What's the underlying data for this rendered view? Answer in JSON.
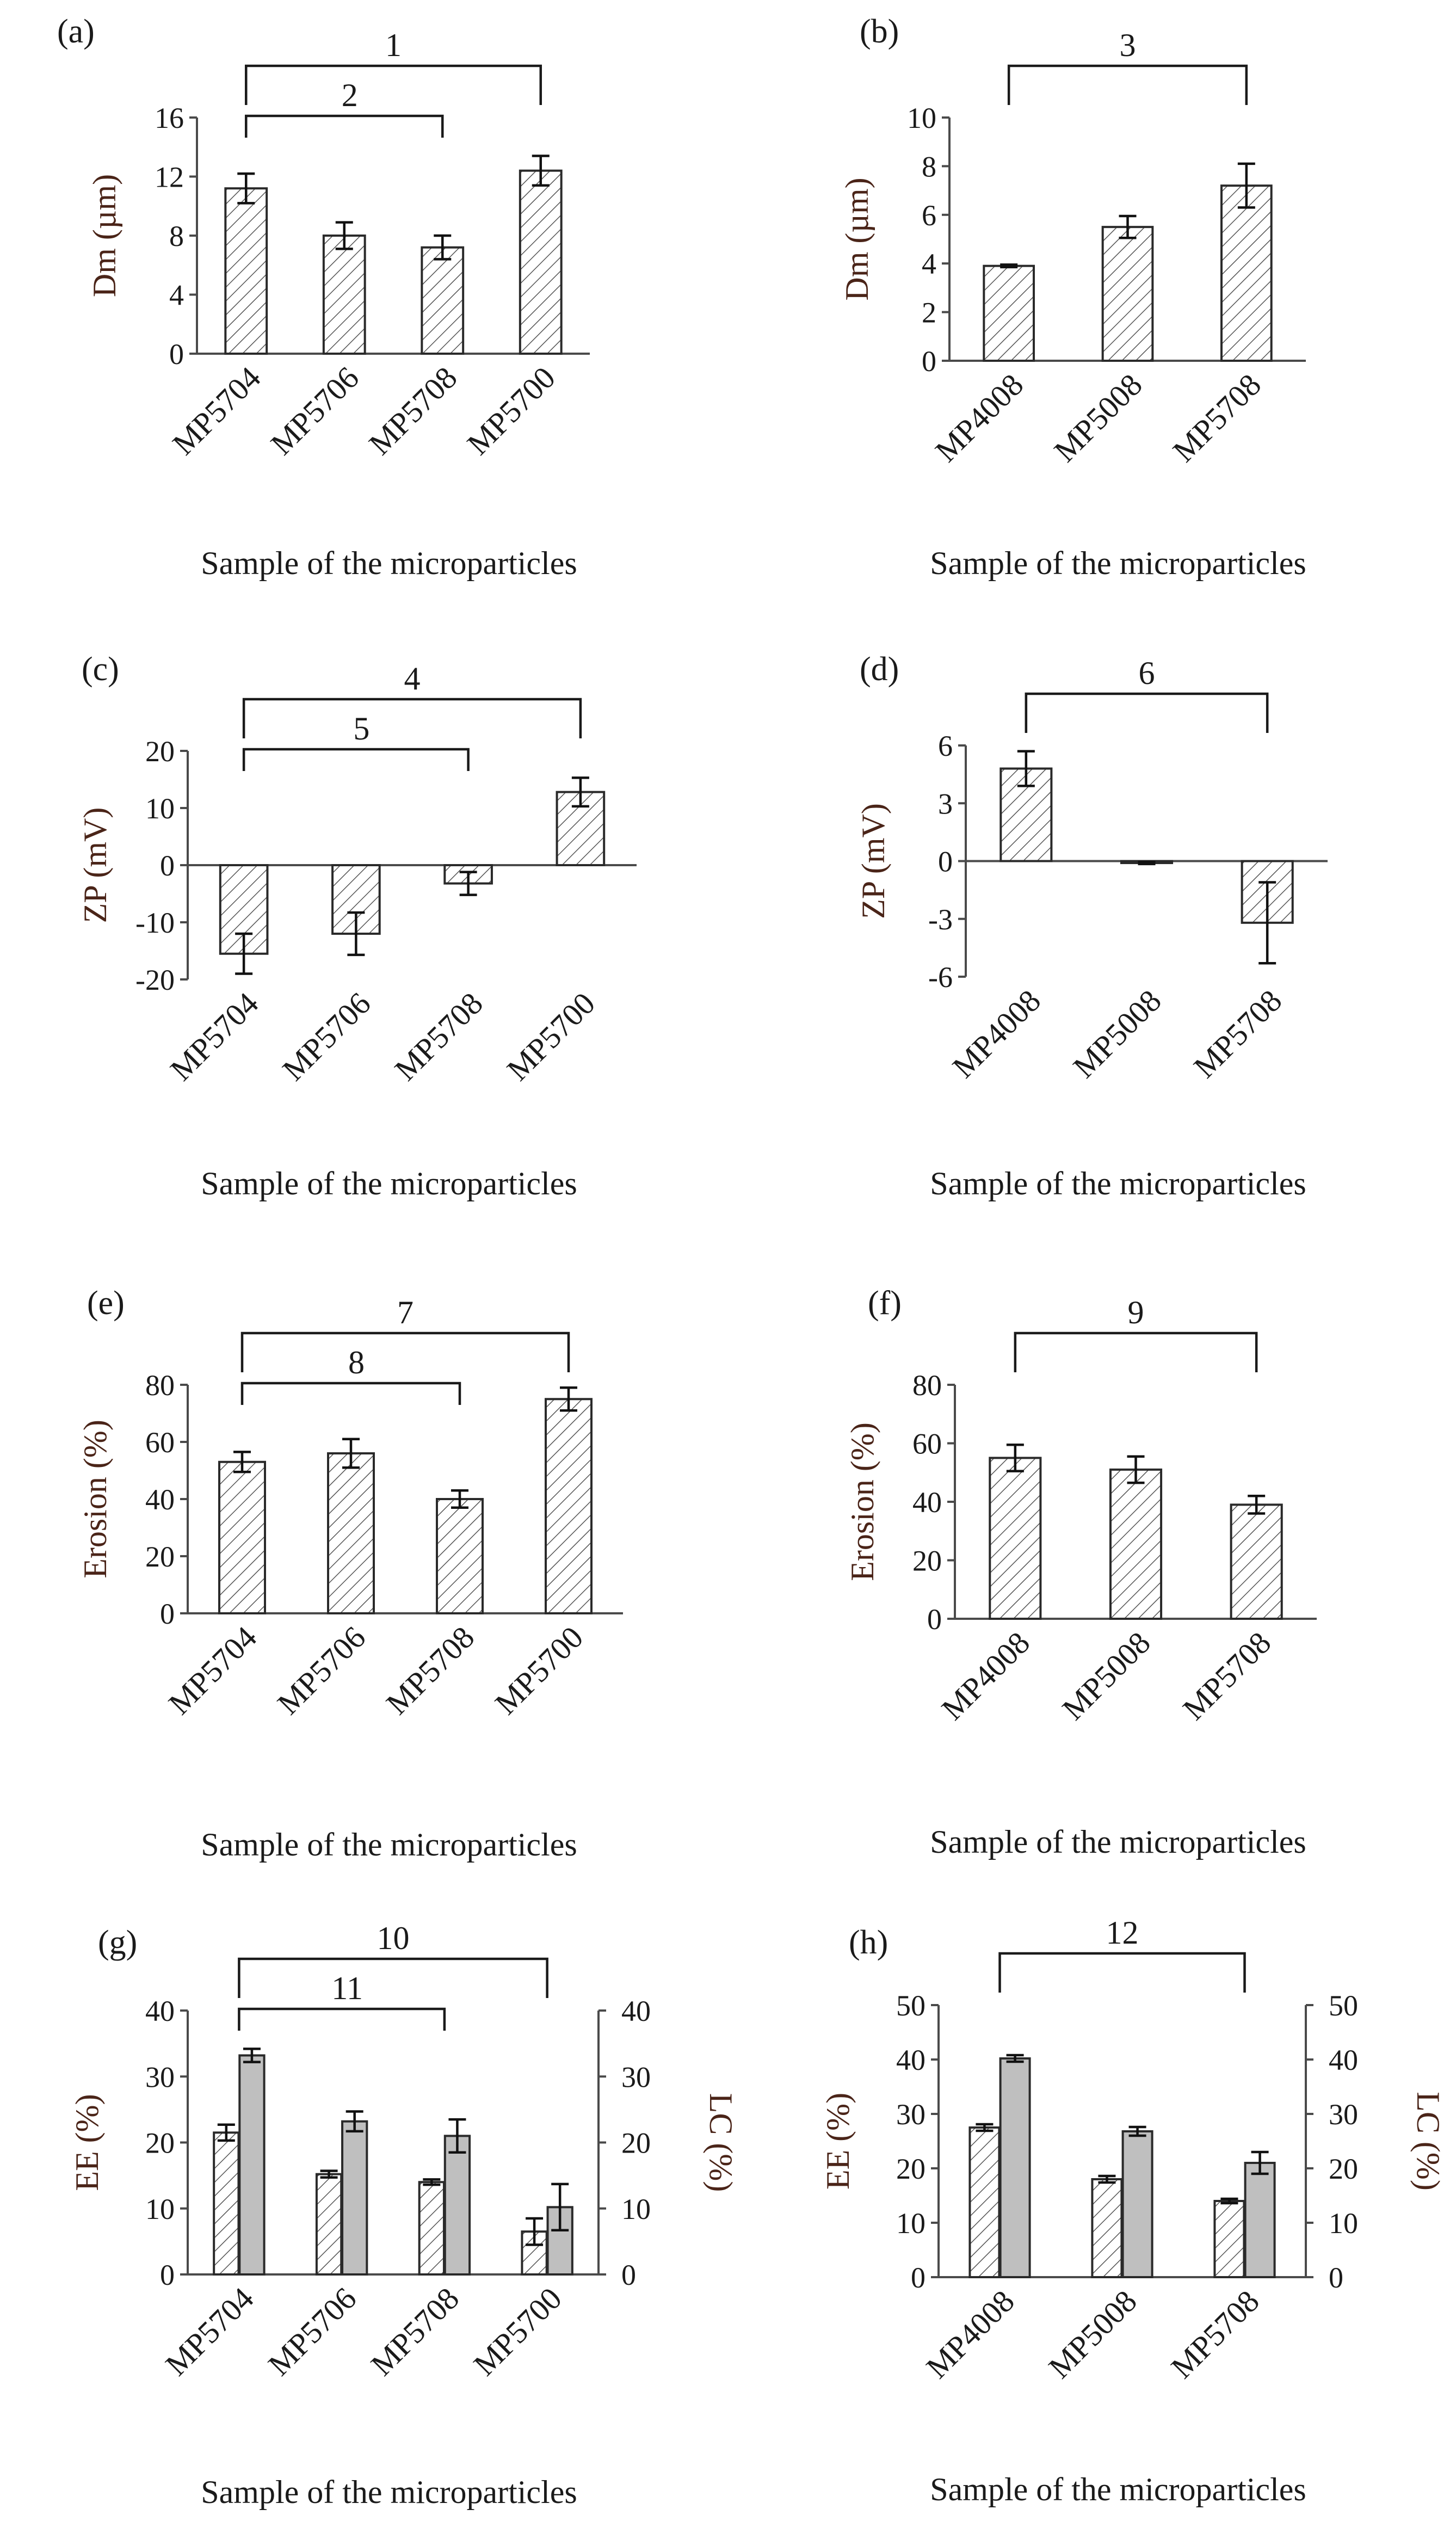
{
  "chart_data": [
    {
      "id": "a",
      "label": "(a)",
      "type": "bar",
      "categories": [
        "MP5704",
        "MP5706",
        "MP5708",
        "MP5700"
      ],
      "values": [
        11.2,
        8.0,
        7.2,
        12.4
      ],
      "errors": [
        1.0,
        0.9,
        0.8,
        1.0
      ],
      "ylabel": "Dm (µm)",
      "xlabel": "Sample of the microparticles",
      "ylim": [
        0,
        16
      ],
      "yticks": [
        0,
        4,
        8,
        12,
        16
      ],
      "brackets": [
        {
          "label": "1",
          "from": 0,
          "to": 3,
          "level": 0
        },
        {
          "label": "2",
          "from": 0,
          "to": 2,
          "level": 1
        }
      ]
    },
    {
      "id": "b",
      "label": "(b)",
      "type": "bar",
      "categories": [
        "MP4008",
        "MP5008",
        "MP5708"
      ],
      "values": [
        3.9,
        5.5,
        7.2
      ],
      "errors": [
        0.05,
        0.45,
        0.9
      ],
      "ylabel": "Dm (µm)",
      "xlabel": "Sample of the microparticles",
      "ylim": [
        0,
        10
      ],
      "yticks": [
        0,
        2,
        4,
        6,
        8,
        10
      ],
      "brackets": [
        {
          "label": "3",
          "from": 0,
          "to": 2,
          "level": 0
        }
      ]
    },
    {
      "id": "c",
      "label": "(c)",
      "type": "bar",
      "categories": [
        "MP5704",
        "MP5706",
        "MP5708",
        "MP5700"
      ],
      "values": [
        -15.5,
        -12.0,
        -3.2,
        12.8
      ],
      "errors": [
        3.5,
        3.7,
        2.0,
        2.5
      ],
      "ylabel": "ZP (mV)",
      "xlabel": "Sample of the microparticles",
      "ylim": [
        -20,
        20
      ],
      "yticks": [
        -20,
        -10,
        0,
        10,
        20
      ],
      "brackets": [
        {
          "label": "4",
          "from": 0,
          "to": 3,
          "level": 0
        },
        {
          "label": "5",
          "from": 0,
          "to": 2,
          "level": 1
        }
      ]
    },
    {
      "id": "d",
      "label": "(d)",
      "type": "bar",
      "categories": [
        "MP4008",
        "MP5008",
        "MP5708"
      ],
      "values": [
        4.8,
        -0.1,
        -3.2
      ],
      "errors": [
        0.9,
        0.05,
        2.1
      ],
      "ylabel": "ZP (mV)",
      "xlabel": "Sample of the microparticles",
      "ylim": [
        -6,
        6
      ],
      "yticks": [
        -6,
        -3,
        0,
        3,
        6
      ],
      "brackets": [
        {
          "label": "6",
          "from": 0,
          "to": 2,
          "level": 0
        }
      ]
    },
    {
      "id": "e",
      "label": "(e)",
      "type": "bar",
      "categories": [
        "MP5704",
        "MP5706",
        "MP5708",
        "MP5700"
      ],
      "values": [
        53,
        56,
        40,
        75
      ],
      "errors": [
        3.5,
        5,
        3,
        4
      ],
      "ylabel": "Erosion (%)",
      "xlabel": "Sample of the microparticles",
      "ylim": [
        0,
        80
      ],
      "yticks": [
        0,
        20,
        40,
        60,
        80
      ],
      "brackets": [
        {
          "label": "7",
          "from": 0,
          "to": 3,
          "level": 0
        },
        {
          "label": "8",
          "from": 0,
          "to": 2,
          "level": 1
        }
      ]
    },
    {
      "id": "f",
      "label": "(f)",
      "type": "bar",
      "categories": [
        "MP4008",
        "MP5008",
        "MP5708"
      ],
      "values": [
        55,
        51,
        39
      ],
      "errors": [
        4.5,
        4.5,
        3
      ],
      "ylabel": "Erosion (%)",
      "xlabel": "Sample of the microparticles",
      "ylim": [
        0,
        80
      ],
      "yticks": [
        0,
        20,
        40,
        60,
        80
      ],
      "brackets": [
        {
          "label": "9",
          "from": 0,
          "to": 2,
          "level": 0
        }
      ]
    },
    {
      "id": "g",
      "label": "(g)",
      "type": "bar",
      "categories": [
        "MP5704",
        "MP5706",
        "MP5708",
        "MP5700"
      ],
      "series": [
        {
          "name": "EE (%)",
          "style": "hatched",
          "axis": "left",
          "values": [
            21.5,
            15.2,
            14.0,
            6.5
          ],
          "errors": [
            1.2,
            0.5,
            0.4,
            2.0
          ]
        },
        {
          "name": "LC (%)",
          "style": "solid",
          "axis": "right",
          "values": [
            33.2,
            23.2,
            21.0,
            10.2
          ],
          "errors": [
            1.0,
            1.5,
            2.5,
            3.5
          ]
        }
      ],
      "ylabel": "EE (%)",
      "ylabel_right": "LC (%)",
      "xlabel": "Sample of the microparticles",
      "ylim": [
        0,
        40
      ],
      "yticks": [
        0,
        10,
        20,
        30,
        40
      ],
      "ylim_right": [
        0,
        40
      ],
      "yticks_right": [
        0,
        10,
        20,
        30,
        40
      ],
      "brackets": [
        {
          "label": "10",
          "from": 0,
          "to": 3,
          "level": 0
        },
        {
          "label": "11",
          "from": 0,
          "to": 2,
          "level": 1
        }
      ]
    },
    {
      "id": "h",
      "label": "(h)",
      "type": "bar",
      "categories": [
        "MP4008",
        "MP5008",
        "MP5708"
      ],
      "series": [
        {
          "name": "EE (%)",
          "style": "hatched",
          "axis": "left",
          "values": [
            27.5,
            18.0,
            14.0
          ],
          "errors": [
            0.6,
            0.6,
            0.4
          ]
        },
        {
          "name": "LC (%)",
          "style": "solid",
          "axis": "right",
          "values": [
            40.2,
            26.8,
            21.0
          ],
          "errors": [
            0.6,
            0.8,
            2.0
          ]
        }
      ],
      "ylabel": "EE (%)",
      "ylabel_right": "LC (%)",
      "xlabel": "Sample of the microparticles",
      "ylim": [
        0,
        50
      ],
      "yticks": [
        0,
        10,
        20,
        30,
        40,
        50
      ],
      "ylim_right": [
        0,
        50
      ],
      "yticks_right": [
        0,
        10,
        20,
        30,
        40,
        50
      ],
      "brackets": [
        {
          "label": "12",
          "from": 0,
          "to": 2,
          "level": 0
        }
      ]
    }
  ]
}
